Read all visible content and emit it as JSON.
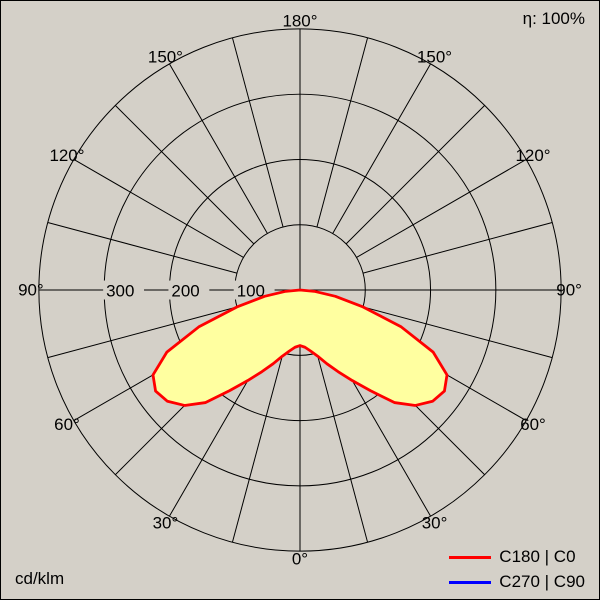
{
  "header": {
    "efficiency": "η: 100%"
  },
  "footer": {
    "unit": "cd/klm"
  },
  "legend": [
    {
      "label": "C180 | C0",
      "color": "#ff0000"
    },
    {
      "label": "C270 | C90",
      "color": "#0000ff"
    }
  ],
  "colors": {
    "background": "#d4d0c8",
    "grid": "#000000",
    "text": "#000000",
    "curve_fill": "#ffffa0"
  },
  "chart_data": {
    "type": "polar-line",
    "unit": "cd/klm",
    "efficiency": "η: 100%",
    "angle_labels_deg": [
      0,
      30,
      60,
      90,
      120,
      150,
      180
    ],
    "radial_tick_values": [
      100,
      200,
      300
    ],
    "grid_circle_values": [
      100,
      200,
      300,
      400
    ],
    "r_axis_max": 400,
    "spoke_step_deg": 15,
    "fill_color": "#ffffa0",
    "series": [
      {
        "name": "C180 | C0",
        "color": "#ff0000",
        "symmetric": true,
        "gamma_deg": [
          0,
          5,
          10,
          15,
          20,
          25,
          30,
          35,
          40,
          45,
          50,
          55,
          60,
          65,
          70,
          75,
          80,
          85,
          90
        ],
        "intensity_cd_klm": [
          85,
          88,
          95,
          105,
          120,
          138,
          160,
          188,
          225,
          250,
          265,
          270,
          260,
          225,
          165,
          100,
          55,
          22,
          0
        ]
      },
      {
        "name": "C270 | C90",
        "color": "#0000ff"
      }
    ]
  }
}
